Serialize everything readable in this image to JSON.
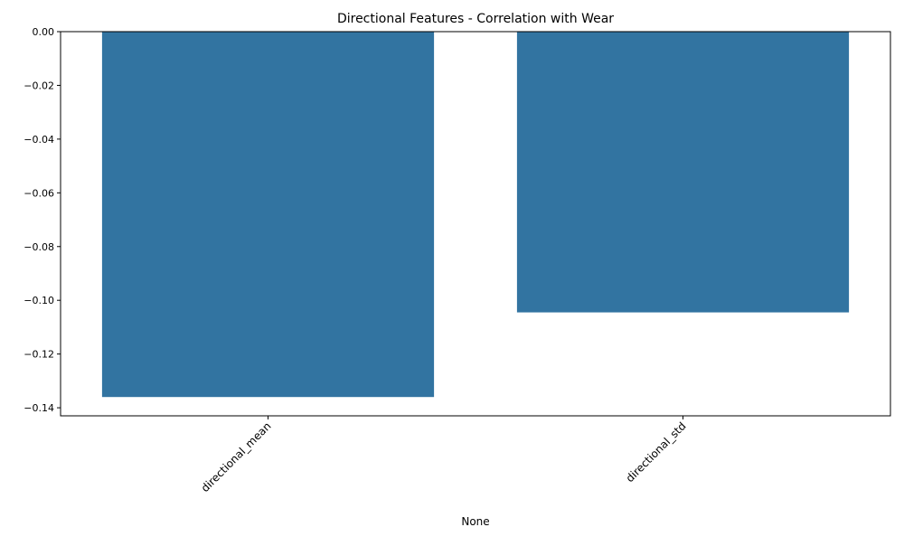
{
  "chart_data": {
    "type": "bar",
    "title": "Directional Features - Correlation with Wear",
    "xlabel": "None",
    "ylabel": "",
    "categories": [
      "directional_mean",
      "directional_std"
    ],
    "values": [
      -0.136,
      -0.1045
    ],
    "ylim": [
      -0.143,
      0.0
    ],
    "yticks": [
      0.0,
      -0.02,
      -0.04,
      -0.06,
      -0.08,
      -0.1,
      -0.12,
      -0.14
    ],
    "ytick_labels": [
      "0.00",
      "−0.02",
      "−0.04",
      "−0.06",
      "−0.08",
      "−0.10",
      "−0.12",
      "−0.14"
    ],
    "bar_color": "#3274a1",
    "grid": false,
    "legend": "none",
    "xtick_rotation_deg": 45
  }
}
